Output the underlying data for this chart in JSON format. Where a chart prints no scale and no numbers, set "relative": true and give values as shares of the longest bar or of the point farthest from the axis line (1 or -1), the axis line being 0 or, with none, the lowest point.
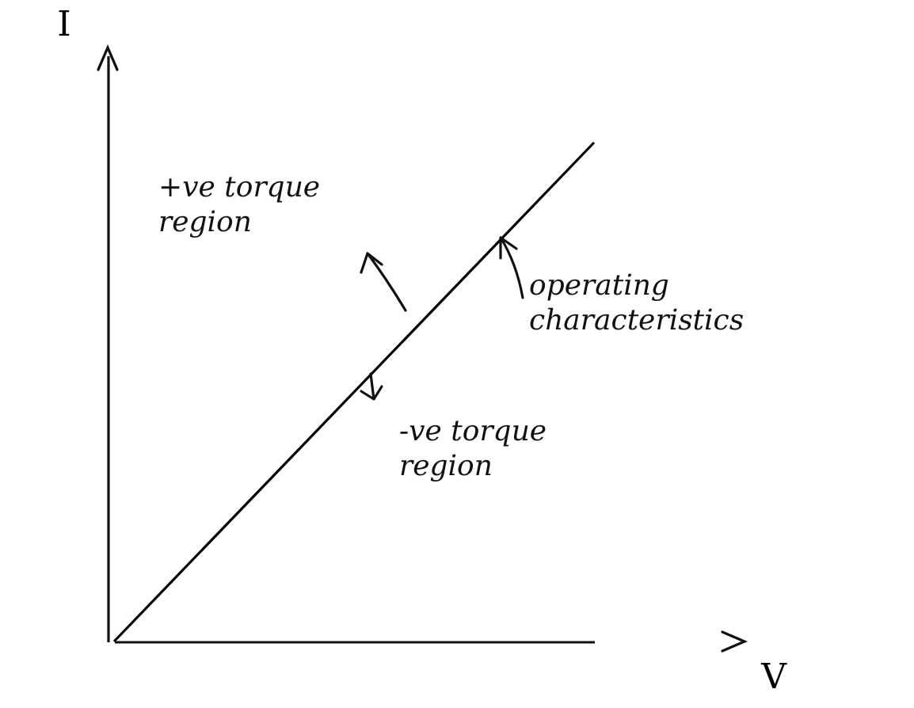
{
  "chart_data": {
    "type": "line",
    "relative": true,
    "xlabel": "V",
    "ylabel": "I",
    "categories": [
      null,
      null
    ],
    "values": [
      0,
      1
    ],
    "color": "#000000",
    "annotations": [
      "+ve torque region",
      "operating characteristics",
      "-ve torque region"
    ]
  }
}
